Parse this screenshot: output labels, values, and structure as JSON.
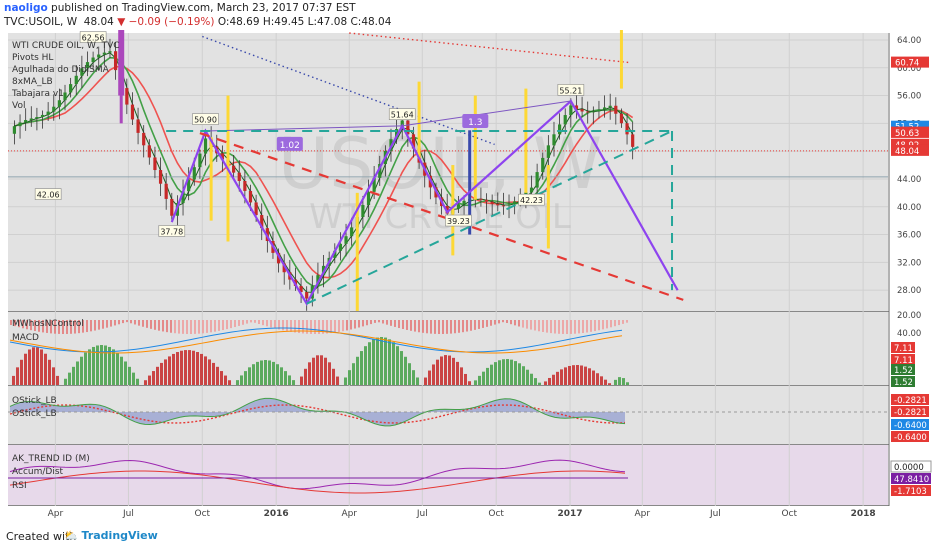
{
  "header": {
    "author": "naoligo",
    "published_text": "published on TradingView.com, March 23, 2017 07:37 EST",
    "symbol": "TVC:USOIL, W",
    "last": "48.04",
    "change": "−0.09 (−0.19%)",
    "ohlc": "O:48.69 H:49.45 L:47.08 C:48.04"
  },
  "watermark": {
    "line1": "USOIL, W",
    "line2": "WTI CRUDE OIL"
  },
  "legend": [
    "WTI CRUDE OIL, W, TVC",
    "Pivots HL",
    "Agulhada do DidiSMA",
    "8xMA_LB",
    "Tabajara v1",
    "Vol"
  ],
  "pane_titles": {
    "p2a": "MWhosNControl",
    "p2b": "MACD",
    "p3a": "OStick_LB",
    "p3b": "OStick_LB",
    "p4a": "AK_TREND ID (M)",
    "p4b": "Accum/Dist",
    "p4c": "RSI"
  },
  "time_ticks": [
    "Apr",
    "Jul",
    "Oct",
    "2016",
    "Apr",
    "Jul",
    "Oct",
    "2017",
    "Apr",
    "Jul",
    "Oct",
    "2018"
  ],
  "price_ticks": [
    "64.00",
    "60.00",
    "56.00",
    "52.00",
    "48.00",
    "44.00",
    "40.00",
    "36.00",
    "32.00",
    "28.00"
  ],
  "price_badges": [
    {
      "label": "60.74",
      "color": "#e53935"
    },
    {
      "label": "51.52",
      "color": "#1e88e5"
    },
    {
      "label": "50.66",
      "color": "#e53935"
    },
    {
      "label": "50.63",
      "color": "#e53935"
    },
    {
      "label": "48.92",
      "color": "#e53935"
    },
    {
      "label": "48.04",
      "color": "#e53935"
    }
  ],
  "pivot_labels": [
    "62.56",
    "50.90",
    "37.78",
    "42.06",
    "51.64",
    "39.23",
    "55.21",
    "42.23"
  ],
  "pattern_labels": [
    "1.02",
    "1.3"
  ],
  "pane2_ticks": [
    "20.00",
    "40.00"
  ],
  "pane2_badges": [
    {
      "label": "7.11",
      "color": "#e53935"
    },
    {
      "label": "7.11",
      "color": "#e53935"
    },
    {
      "label": "1.52",
      "color": "#2e7d32"
    },
    {
      "label": "1.52",
      "color": "#2e7d32"
    }
  ],
  "pane3_badges": [
    {
      "label": "-0.2821",
      "color": "#e53935"
    },
    {
      "label": "-0.2821",
      "color": "#e53935"
    },
    {
      "label": "-0.6400",
      "color": "#1e88e5"
    },
    {
      "label": "-0.6400",
      "color": "#e53935"
    }
  ],
  "pane4_badges": [
    {
      "label": "0.0000",
      "color": "#ffffff"
    },
    {
      "label": "47.8410",
      "color": "#7b1fa2"
    },
    {
      "label": "-1.7103",
      "color": "#e53935"
    }
  ],
  "footer": {
    "created": "Created with",
    "brand": "TradingView"
  },
  "chart_data": {
    "type": "candlestick",
    "timeframe": "W",
    "price_range": [
      25,
      65
    ],
    "x_range": [
      "2015-02",
      "2018-02"
    ],
    "pivots": [
      {
        "date": "2015-06-08",
        "price": 62.56
      },
      {
        "date": "2015-08-24",
        "price": 37.78
      },
      {
        "date": "2015-10-05",
        "price": 50.9
      },
      {
        "date": "2016-02-08",
        "price": 26.05
      },
      {
        "date": "2016-06-06",
        "price": 51.64
      },
      {
        "date": "2016-08-01",
        "price": 39.23
      },
      {
        "date": "2016-11-14",
        "price": 42.23
      },
      {
        "date": "2017-01-02",
        "price": 55.21
      }
    ],
    "projection": [
      {
        "date": "2017-01-02",
        "price": 55.21
      },
      {
        "date": "2017-05-15",
        "price": 28.0
      }
    ],
    "last_close": 48.04
  }
}
